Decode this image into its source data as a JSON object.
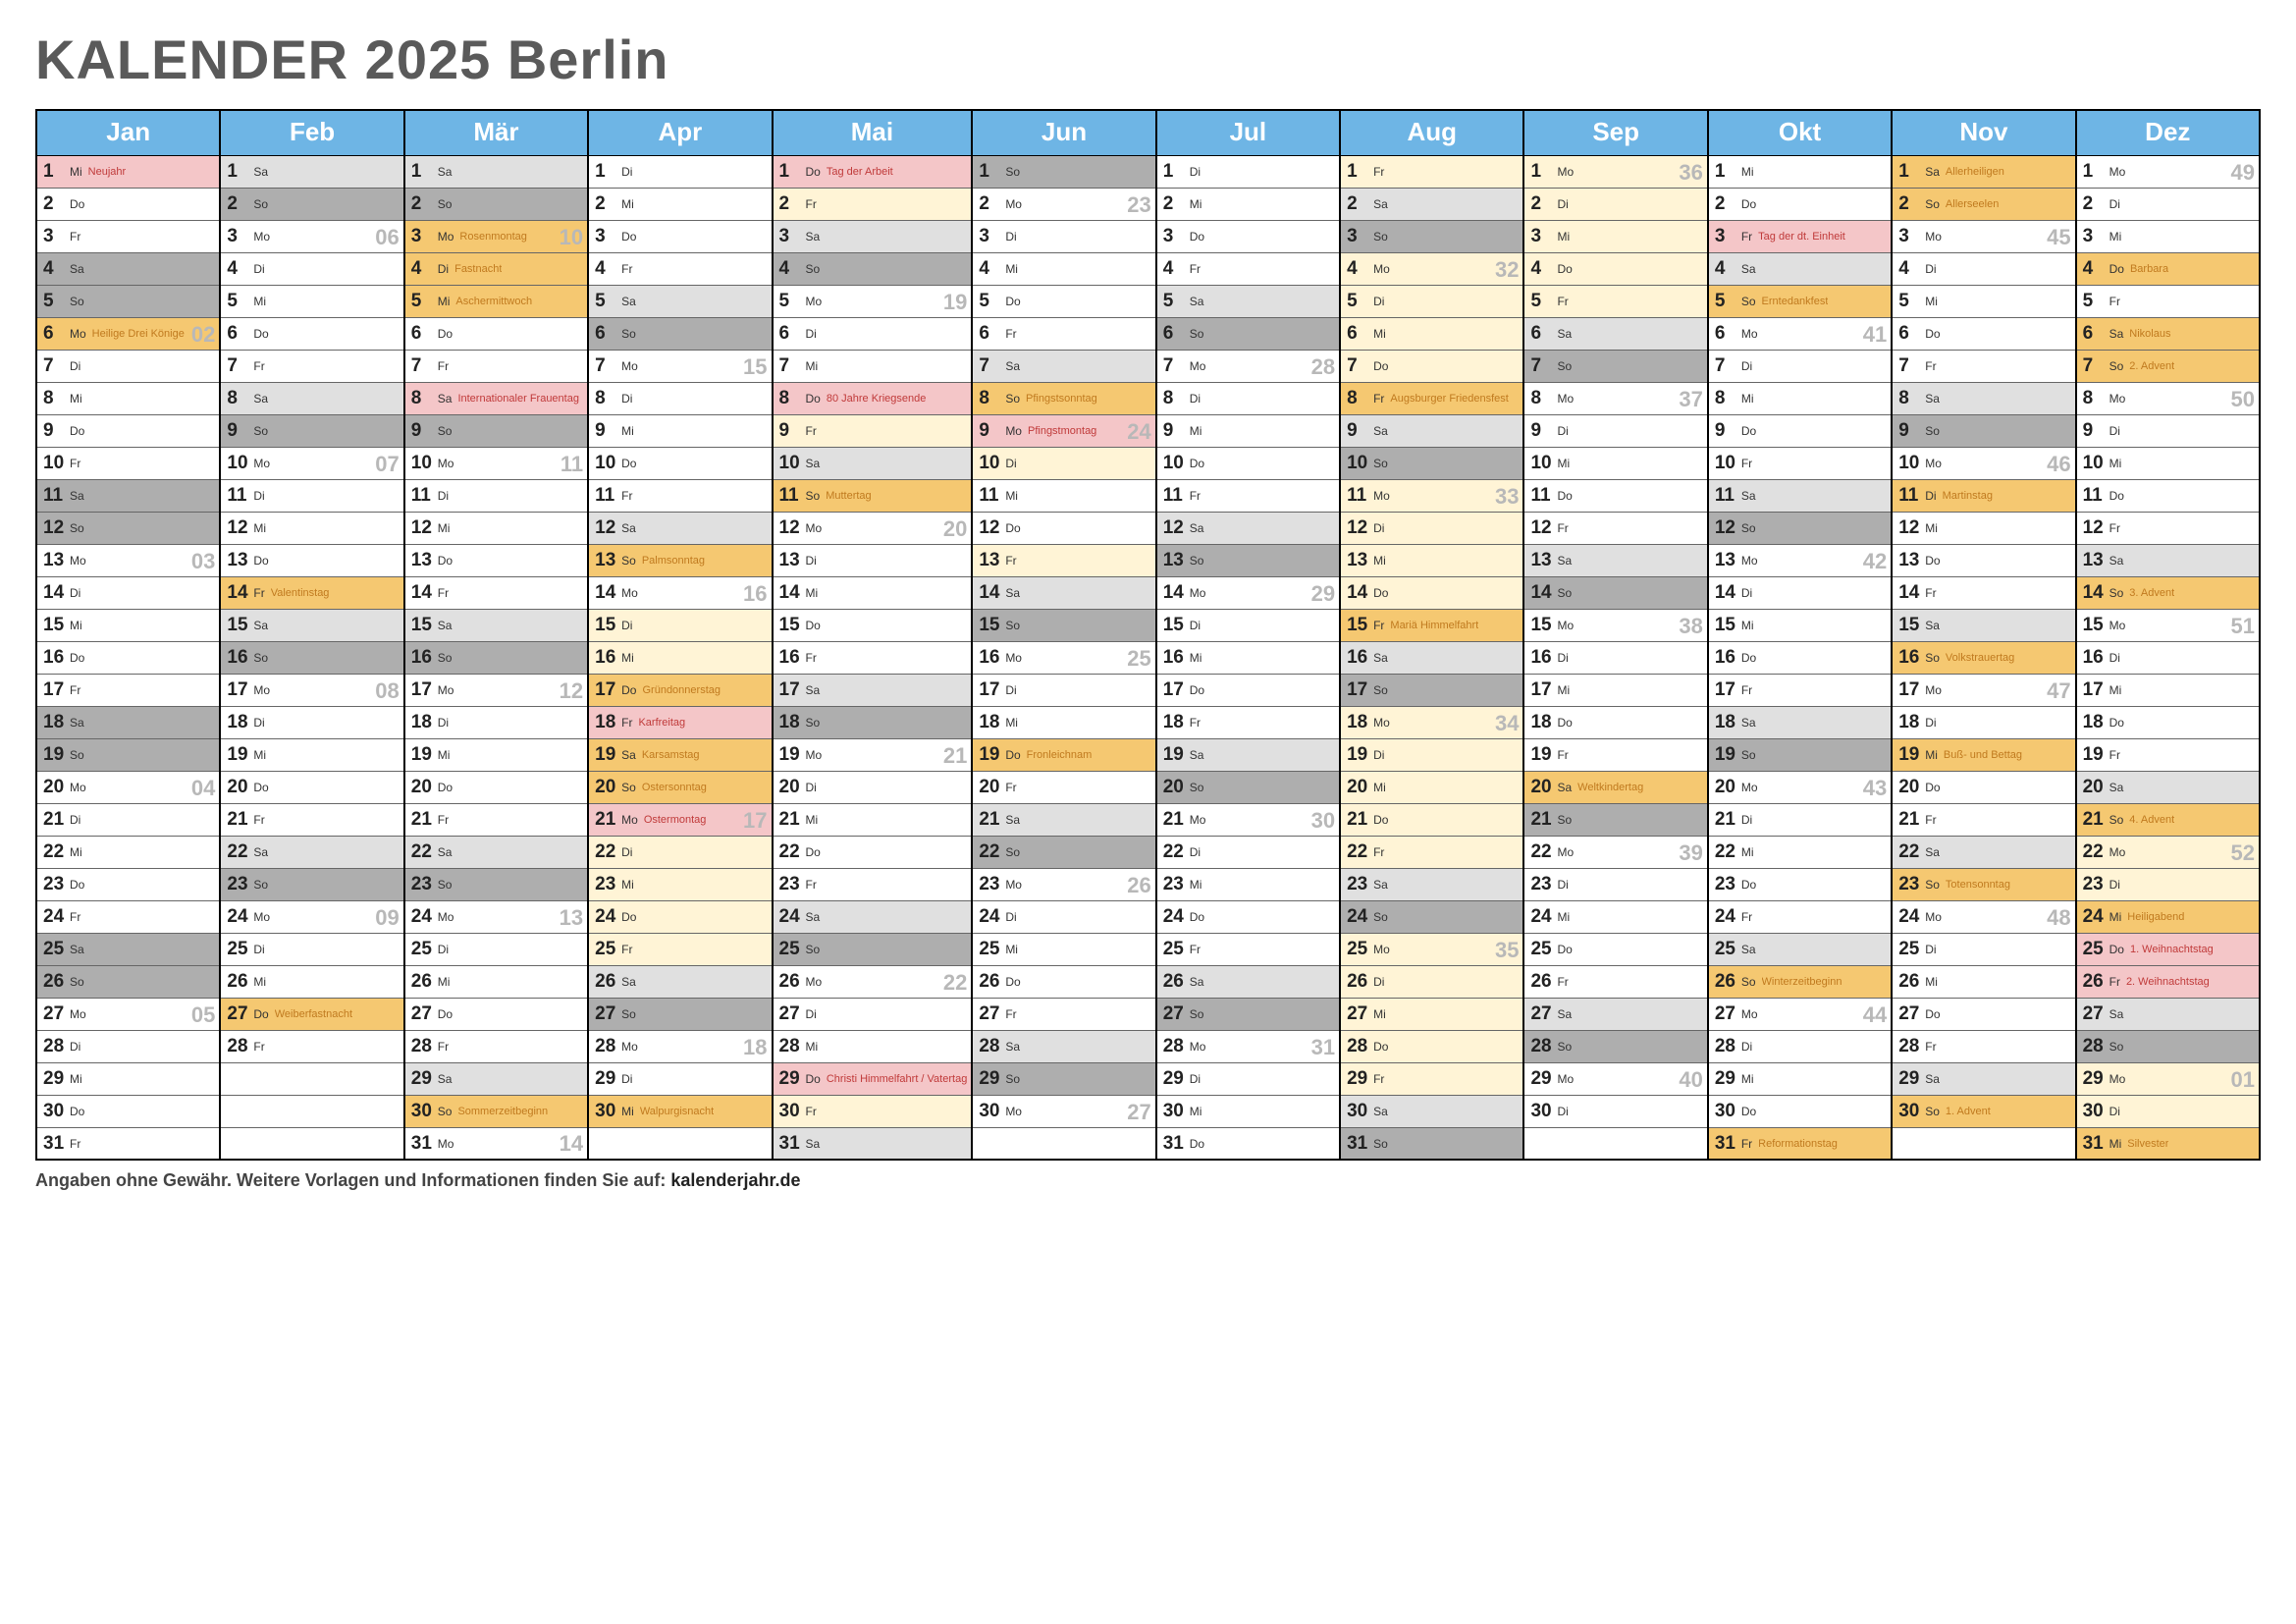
{
  "title": "KALENDER 2025 Berlin",
  "footer_text": "Angaben ohne Gewähr. Weitere Vorlagen und Informationen finden Sie auf: ",
  "footer_link": "kalenderjahr.de",
  "colors": {
    "header_bg": "#6eb5e5",
    "weekend_light": "#e0e0e0",
    "weekend_dark": "#aeaeae",
    "cream": "#fff4d6",
    "orange": "#f5c871",
    "pink": "#f4c6c8",
    "note_red": "#c03a3a",
    "note_orange": "#c07a1f",
    "note_gray": "#888888",
    "week_num": "#b8b8b8",
    "plain": "#ffffff"
  },
  "months": [
    "Jan",
    "Feb",
    "Mär",
    "Apr",
    "Mai",
    "Jun",
    "Jul",
    "Aug",
    "Sep",
    "Okt",
    "Nov",
    "Dez"
  ],
  "days_in_month": [
    31,
    28,
    31,
    30,
    31,
    30,
    31,
    31,
    30,
    31,
    30,
    31
  ],
  "start_dow": [
    2,
    5,
    5,
    1,
    3,
    6,
    1,
    4,
    0,
    2,
    5,
    0
  ],
  "dow_labels": [
    "Mo",
    "Di",
    "Mi",
    "Do",
    "Fr",
    "Sa",
    "So"
  ],
  "specials": {
    "0-1": {
      "bg": "pink",
      "note": "Neujahr",
      "nc": "note_red"
    },
    "0-4": {
      "bg": "weekend_dark"
    },
    "0-5": {
      "bg": "weekend_dark"
    },
    "0-6": {
      "bg": "orange",
      "note": "Heilige Drei Könige",
      "nc": "note_orange",
      "wk": "02"
    },
    "0-11": {
      "bg": "weekend_dark"
    },
    "0-12": {
      "bg": "weekend_dark"
    },
    "0-13": {
      "wk": "03"
    },
    "0-18": {
      "bg": "weekend_dark"
    },
    "0-19": {
      "bg": "weekend_dark"
    },
    "0-20": {
      "wk": "04"
    },
    "0-25": {
      "bg": "weekend_dark"
    },
    "0-26": {
      "bg": "weekend_dark"
    },
    "0-27": {
      "wk": "05"
    },
    "1-1": {
      "bg": "weekend_light"
    },
    "1-2": {
      "bg": "weekend_dark"
    },
    "1-3": {
      "wk": "06"
    },
    "1-8": {
      "bg": "weekend_light"
    },
    "1-9": {
      "bg": "weekend_dark"
    },
    "1-10": {
      "wk": "07"
    },
    "1-14": {
      "bg": "orange",
      "note": "Valentinstag",
      "nc": "note_orange"
    },
    "1-15": {
      "bg": "weekend_light"
    },
    "1-16": {
      "bg": "weekend_dark"
    },
    "1-17": {
      "wk": "08"
    },
    "1-22": {
      "bg": "weekend_light"
    },
    "1-23": {
      "bg": "weekend_dark"
    },
    "1-24": {
      "wk": "09"
    },
    "1-27": {
      "bg": "orange",
      "note": "Weiberfastnacht",
      "nc": "note_orange"
    },
    "2-1": {
      "bg": "weekend_light"
    },
    "2-2": {
      "bg": "weekend_dark"
    },
    "2-3": {
      "bg": "orange",
      "note": "Rosenmontag",
      "nc": "note_orange",
      "wk": "10"
    },
    "2-4": {
      "bg": "orange",
      "note": "Fastnacht",
      "nc": "note_orange"
    },
    "2-5": {
      "bg": "orange",
      "note": "Aschermittwoch",
      "nc": "note_orange"
    },
    "2-8": {
      "bg": "pink",
      "note": "Internationaler Frauentag",
      "nc": "note_red"
    },
    "2-9": {
      "bg": "weekend_dark"
    },
    "2-10": {
      "wk": "11"
    },
    "2-15": {
      "bg": "weekend_light"
    },
    "2-16": {
      "bg": "weekend_dark"
    },
    "2-17": {
      "wk": "12"
    },
    "2-22": {
      "bg": "weekend_light"
    },
    "2-23": {
      "bg": "weekend_dark"
    },
    "2-24": {
      "wk": "13"
    },
    "2-29": {
      "bg": "weekend_light"
    },
    "2-30": {
      "bg": "orange",
      "note": "Sommerzeitbeginn",
      "nc": "note_orange"
    },
    "2-31": {
      "wk": "14"
    },
    "3-5": {
      "bg": "weekend_light"
    },
    "3-6": {
      "bg": "weekend_dark"
    },
    "3-7": {
      "wk": "15"
    },
    "3-12": {
      "bg": "weekend_light"
    },
    "3-13": {
      "bg": "orange",
      "note": "Palmsonntag",
      "nc": "note_orange"
    },
    "3-14": {
      "wk": "16"
    },
    "3-15": {
      "bg": "cream"
    },
    "3-16": {
      "bg": "cream"
    },
    "3-17": {
      "bg": "orange",
      "note": "Gründonnerstag",
      "nc": "note_orange"
    },
    "3-18": {
      "bg": "pink",
      "note": "Karfreitag",
      "nc": "note_red"
    },
    "3-19": {
      "bg": "orange",
      "note": "Karsamstag",
      "nc": "note_orange"
    },
    "3-20": {
      "bg": "orange",
      "note": "Ostersonntag",
      "nc": "note_orange"
    },
    "3-21": {
      "bg": "pink",
      "note": "Ostermontag",
      "nc": "note_red",
      "wk": "17"
    },
    "3-22": {
      "bg": "cream"
    },
    "3-23": {
      "bg": "cream"
    },
    "3-24": {
      "bg": "cream"
    },
    "3-25": {
      "bg": "cream"
    },
    "3-26": {
      "bg": "weekend_light"
    },
    "3-27": {
      "bg": "weekend_dark"
    },
    "3-28": {
      "wk": "18"
    },
    "3-30": {
      "bg": "orange",
      "note": "Walpurgisnacht",
      "nc": "note_orange"
    },
    "4-1": {
      "bg": "pink",
      "note": "Tag der Arbeit",
      "nc": "note_red"
    },
    "4-2": {
      "bg": "cream"
    },
    "4-3": {
      "bg": "weekend_light"
    },
    "4-4": {
      "bg": "weekend_dark"
    },
    "4-5": {
      "wk": "19"
    },
    "4-8": {
      "bg": "pink",
      "note": "80 Jahre Kriegsende",
      "nc": "note_red"
    },
    "4-9": {
      "bg": "cream"
    },
    "4-10": {
      "bg": "weekend_light"
    },
    "4-11": {
      "bg": "orange",
      "note": "Muttertag",
      "nc": "note_orange"
    },
    "4-12": {
      "wk": "20"
    },
    "4-17": {
      "bg": "weekend_light"
    },
    "4-18": {
      "bg": "weekend_dark"
    },
    "4-19": {
      "wk": "21"
    },
    "4-24": {
      "bg": "weekend_light"
    },
    "4-25": {
      "bg": "weekend_dark"
    },
    "4-26": {
      "wk": "22"
    },
    "4-29": {
      "bg": "pink",
      "note": "Christi Himmelfahrt / Vatertag",
      "nc": "note_red"
    },
    "4-30": {
      "bg": "cream"
    },
    "4-31": {
      "bg": "weekend_light"
    },
    "5-1": {
      "bg": "weekend_dark"
    },
    "5-2": {
      "wk": "23"
    },
    "5-7": {
      "bg": "weekend_light"
    },
    "5-8": {
      "bg": "orange",
      "note": "Pfingstsonntag",
      "nc": "note_orange"
    },
    "5-9": {
      "bg": "pink",
      "note": "Pfingstmontag",
      "nc": "note_red",
      "wk": "24"
    },
    "5-10": {
      "bg": "cream"
    },
    "5-13": {
      "bg": "cream"
    },
    "5-14": {
      "bg": "weekend_light"
    },
    "5-15": {
      "bg": "weekend_dark"
    },
    "5-16": {
      "wk": "25"
    },
    "5-19": {
      "bg": "orange",
      "note": "Fronleichnam",
      "nc": "note_orange"
    },
    "5-21": {
      "bg": "weekend_light"
    },
    "5-22": {
      "bg": "weekend_dark"
    },
    "5-23": {
      "wk": "26"
    },
    "5-28": {
      "bg": "weekend_light"
    },
    "5-29": {
      "bg": "weekend_dark"
    },
    "5-30": {
      "wk": "27"
    },
    "6-5": {
      "bg": "weekend_light"
    },
    "6-6": {
      "bg": "weekend_dark"
    },
    "6-7": {
      "wk": "28"
    },
    "6-12": {
      "bg": "weekend_light"
    },
    "6-13": {
      "bg": "weekend_dark"
    },
    "6-14": {
      "wk": "29"
    },
    "6-19": {
      "bg": "weekend_light"
    },
    "6-20": {
      "bg": "weekend_dark"
    },
    "6-21": {
      "wk": "30"
    },
    "6-26": {
      "bg": "weekend_light"
    },
    "6-27": {
      "bg": "weekend_dark"
    },
    "6-28": {
      "wk": "31"
    },
    "7-1": {
      "bg": "cream"
    },
    "7-2": {
      "bg": "weekend_light"
    },
    "7-3": {
      "bg": "weekend_dark"
    },
    "7-4": {
      "bg": "cream",
      "wk": "32"
    },
    "7-5": {
      "bg": "cream"
    },
    "7-6": {
      "bg": "cream"
    },
    "7-7": {
      "bg": "cream"
    },
    "7-8": {
      "bg": "orange",
      "note": "Augsburger Friedensfest",
      "nc": "note_orange"
    },
    "7-9": {
      "bg": "weekend_light"
    },
    "7-10": {
      "bg": "weekend_dark"
    },
    "7-11": {
      "bg": "cream",
      "wk": "33"
    },
    "7-12": {
      "bg": "cream"
    },
    "7-13": {
      "bg": "cream"
    },
    "7-14": {
      "bg": "cream"
    },
    "7-15": {
      "bg": "orange",
      "note": "Mariä Himmelfahrt",
      "nc": "note_orange"
    },
    "7-16": {
      "bg": "weekend_light"
    },
    "7-17": {
      "bg": "weekend_dark"
    },
    "7-18": {
      "bg": "cream",
      "wk": "34"
    },
    "7-19": {
      "bg": "cream"
    },
    "7-20": {
      "bg": "cream"
    },
    "7-21": {
      "bg": "cream"
    },
    "7-22": {
      "bg": "cream"
    },
    "7-23": {
      "bg": "weekend_light"
    },
    "7-24": {
      "bg": "weekend_dark"
    },
    "7-25": {
      "bg": "cream",
      "wk": "35"
    },
    "7-26": {
      "bg": "cream"
    },
    "7-27": {
      "bg": "cream"
    },
    "7-28": {
      "bg": "cream"
    },
    "7-29": {
      "bg": "cream"
    },
    "7-30": {
      "bg": "weekend_light"
    },
    "7-31": {
      "bg": "weekend_dark"
    },
    "8-1": {
      "bg": "cream",
      "wk": "36"
    },
    "8-2": {
      "bg": "cream"
    },
    "8-3": {
      "bg": "cream"
    },
    "8-4": {
      "bg": "cream"
    },
    "8-5": {
      "bg": "cream"
    },
    "8-6": {
      "bg": "weekend_light"
    },
    "8-7": {
      "bg": "weekend_dark"
    },
    "8-8": {
      "wk": "37"
    },
    "8-13": {
      "bg": "weekend_light"
    },
    "8-14": {
      "bg": "weekend_dark"
    },
    "8-15": {
      "wk": "38"
    },
    "8-20": {
      "bg": "orange",
      "note": "Weltkindertag",
      "nc": "note_orange"
    },
    "8-21": {
      "bg": "weekend_dark"
    },
    "8-22": {
      "wk": "39"
    },
    "8-27": {
      "bg": "weekend_light"
    },
    "8-28": {
      "bg": "weekend_dark"
    },
    "8-29": {
      "wk": "40"
    },
    "9-3": {
      "bg": "pink",
      "note": "Tag der dt. Einheit",
      "nc": "note_red"
    },
    "9-4": {
      "bg": "weekend_light"
    },
    "9-5": {
      "bg": "orange",
      "note": "Erntedankfest",
      "nc": "note_orange"
    },
    "9-6": {
      "wk": "41"
    },
    "9-11": {
      "bg": "weekend_light"
    },
    "9-12": {
      "bg": "weekend_dark"
    },
    "9-13": {
      "wk": "42"
    },
    "9-18": {
      "bg": "weekend_light"
    },
    "9-19": {
      "bg": "weekend_dark"
    },
    "9-20": {
      "wk": "43"
    },
    "9-25": {
      "bg": "weekend_light"
    },
    "9-26": {
      "bg": "orange",
      "note": "Winterzeitbeginn",
      "nc": "note_orange"
    },
    "9-27": {
      "wk": "44"
    },
    "9-31": {
      "bg": "orange",
      "note": "Reformationstag",
      "nc": "note_orange"
    },
    "10-1": {
      "bg": "orange",
      "note": "Allerheiligen",
      "nc": "note_orange"
    },
    "10-2": {
      "bg": "orange",
      "note": "Allerseelen",
      "nc": "note_orange"
    },
    "10-3": {
      "wk": "45"
    },
    "10-8": {
      "bg": "weekend_light"
    },
    "10-9": {
      "bg": "weekend_dark"
    },
    "10-10": {
      "wk": "46"
    },
    "10-11": {
      "bg": "orange",
      "note": "Martinstag",
      "nc": "note_orange"
    },
    "10-15": {
      "bg": "weekend_light"
    },
    "10-16": {
      "bg": "orange",
      "note": "Volkstrauertag",
      "nc": "note_orange"
    },
    "10-17": {
      "wk": "47"
    },
    "10-19": {
      "bg": "orange",
      "note": "Buß- und Bettag",
      "nc": "note_orange"
    },
    "10-22": {
      "bg": "weekend_light"
    },
    "10-23": {
      "bg": "orange",
      "note": "Totensonntag",
      "nc": "note_orange"
    },
    "10-24": {
      "wk": "48"
    },
    "10-29": {
      "bg": "weekend_light"
    },
    "10-30": {
      "bg": "orange",
      "note": "1. Advent",
      "nc": "note_orange"
    },
    "11-1": {
      "wk": "49"
    },
    "11-4": {
      "bg": "orange",
      "note": "Barbara",
      "nc": "note_orange"
    },
    "11-6": {
      "bg": "orange",
      "note": "Nikolaus",
      "nc": "note_orange"
    },
    "11-7": {
      "bg": "orange",
      "note": "2. Advent",
      "nc": "note_orange"
    },
    "11-8": {
      "wk": "50"
    },
    "11-13": {
      "bg": "weekend_light"
    },
    "11-14": {
      "bg": "orange",
      "note": "3. Advent",
      "nc": "note_orange"
    },
    "11-15": {
      "wk": "51"
    },
    "11-20": {
      "bg": "weekend_light"
    },
    "11-21": {
      "bg": "orange",
      "note": "4. Advent",
      "nc": "note_orange"
    },
    "11-22": {
      "bg": "cream",
      "wk": "52"
    },
    "11-23": {
      "bg": "cream"
    },
    "11-24": {
      "bg": "orange",
      "note": "Heiligabend",
      "nc": "note_orange"
    },
    "11-25": {
      "bg": "pink",
      "note": "1. Weihnachtstag",
      "nc": "note_red"
    },
    "11-26": {
      "bg": "pink",
      "note": "2. Weihnachtstag",
      "nc": "note_red"
    },
    "11-27": {
      "bg": "weekend_light"
    },
    "11-28": {
      "bg": "weekend_dark"
    },
    "11-29": {
      "bg": "cream",
      "wk": "01"
    },
    "11-30": {
      "bg": "cream"
    },
    "11-31": {
      "bg": "orange",
      "note": "Silvester",
      "nc": "note_orange"
    }
  }
}
